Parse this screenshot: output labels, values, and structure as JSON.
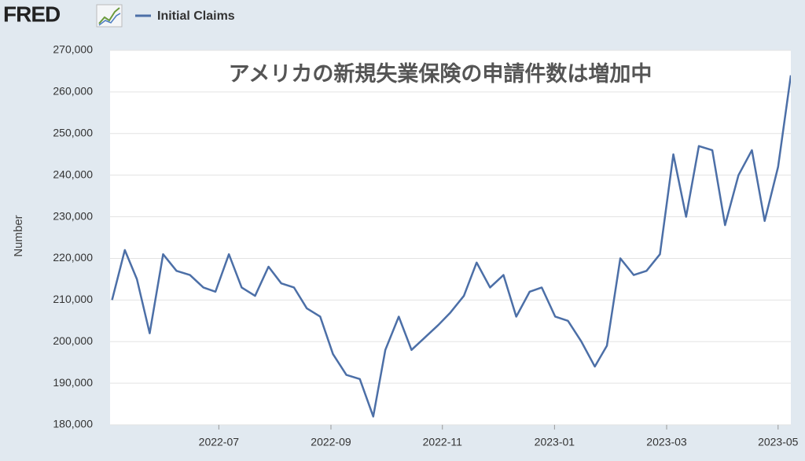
{
  "header": {
    "logo": "FRED"
  },
  "chart_data": {
    "type": "line",
    "title": "アメリカの新規失業保険の申請件数は増加中",
    "ylabel": "Number",
    "x": [
      2022.341,
      2022.36,
      2022.378,
      2022.397,
      2022.417,
      2022.437,
      2022.457,
      2022.477,
      2022.495,
      2022.515,
      2022.534,
      2022.554,
      2022.574,
      2022.593,
      2022.612,
      2022.631,
      2022.651,
      2022.67,
      2022.69,
      2022.71,
      2022.73,
      2022.748,
      2022.768,
      2022.787,
      2022.807,
      2022.827,
      2022.845,
      2022.865,
      2022.884,
      2022.904,
      2022.924,
      2022.943,
      2022.963,
      2022.981,
      2023.001,
      2023.02,
      2023.04,
      2023.06,
      2023.078,
      2023.098,
      2023.118,
      2023.137,
      2023.157,
      2023.177,
      2023.196,
      2023.215,
      2023.235,
      2023.254,
      2023.274,
      2023.294,
      2023.313,
      2023.333,
      2023.352
    ],
    "series": [
      {
        "name": "Initial Claims",
        "color": "#4c6fa7",
        "values": [
          210000,
          222000,
          215000,
          202000,
          221000,
          217000,
          216000,
          213000,
          212000,
          221000,
          213000,
          211000,
          218000,
          214000,
          213000,
          208000,
          206000,
          197000,
          192000,
          191000,
          182000,
          198000,
          206000,
          198000,
          201000,
          204000,
          207000,
          211000,
          219000,
          213000,
          216000,
          206000,
          212000,
          213000,
          206000,
          205000,
          200000,
          194000,
          199000,
          220000,
          216000,
          217000,
          221000,
          245000,
          230000,
          247000,
          246000,
          228000,
          240000,
          246000,
          229000,
          242000,
          264000
        ]
      }
    ],
    "xlim": [
      2022.338,
      2023.352
    ],
    "xticks": [
      {
        "value": 2022.5,
        "label": "2022-07"
      },
      {
        "value": 2022.667,
        "label": "2022-09"
      },
      {
        "value": 2022.833,
        "label": "2022-11"
      },
      {
        "value": 2023.0,
        "label": "2023-01"
      },
      {
        "value": 2023.167,
        "label": "2023-03"
      },
      {
        "value": 2023.333,
        "label": "2023-05"
      }
    ],
    "ylim": [
      180000,
      270000
    ],
    "yticks": [
      {
        "value": 180000,
        "label": "180,000"
      },
      {
        "value": 190000,
        "label": "190,000"
      },
      {
        "value": 200000,
        "label": "200,000"
      },
      {
        "value": 210000,
        "label": "210,000"
      },
      {
        "value": 220000,
        "label": "220,000"
      },
      {
        "value": 230000,
        "label": "230,000"
      },
      {
        "value": 240000,
        "label": "240,000"
      },
      {
        "value": 250000,
        "label": "250,000"
      },
      {
        "value": 260000,
        "label": "260,000"
      },
      {
        "value": 270000,
        "label": "270,000"
      }
    ],
    "grid": true
  }
}
